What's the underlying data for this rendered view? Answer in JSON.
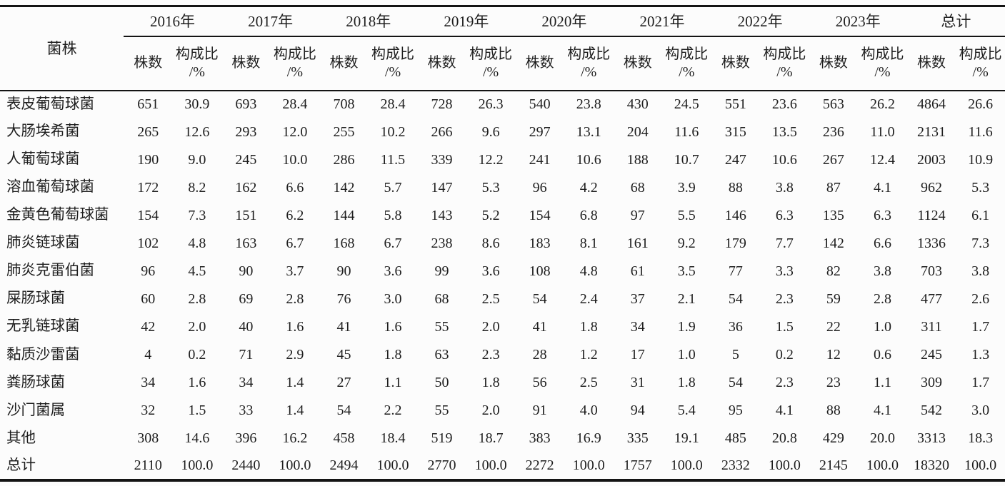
{
  "table": {
    "strain_header": "菌株",
    "sub_count_label": "株数",
    "sub_ratio_line1": "构成比",
    "sub_ratio_line2": "/%",
    "year_groups": [
      "2016年",
      "2017年",
      "2018年",
      "2019年",
      "2020年",
      "2021年",
      "2022年",
      "2023年",
      "总计"
    ],
    "rows": [
      {
        "strain": "表皮葡萄球菌",
        "values": [
          "651",
          "30.9",
          "693",
          "28.4",
          "708",
          "28.4",
          "728",
          "26.3",
          "540",
          "23.8",
          "430",
          "24.5",
          "551",
          "23.6",
          "563",
          "26.2",
          "4864",
          "26.6"
        ]
      },
      {
        "strain": "大肠埃希菌",
        "values": [
          "265",
          "12.6",
          "293",
          "12.0",
          "255",
          "10.2",
          "266",
          "9.6",
          "297",
          "13.1",
          "204",
          "11.6",
          "315",
          "13.5",
          "236",
          "11.0",
          "2131",
          "11.6"
        ]
      },
      {
        "strain": "人葡萄球菌",
        "values": [
          "190",
          "9.0",
          "245",
          "10.0",
          "286",
          "11.5",
          "339",
          "12.2",
          "241",
          "10.6",
          "188",
          "10.7",
          "247",
          "10.6",
          "267",
          "12.4",
          "2003",
          "10.9"
        ]
      },
      {
        "strain": "溶血葡萄球菌",
        "values": [
          "172",
          "8.2",
          "162",
          "6.6",
          "142",
          "5.7",
          "147",
          "5.3",
          "96",
          "4.2",
          "68",
          "3.9",
          "88",
          "3.8",
          "87",
          "4.1",
          "962",
          "5.3"
        ]
      },
      {
        "strain": "金黄色葡萄球菌",
        "values": [
          "154",
          "7.3",
          "151",
          "6.2",
          "144",
          "5.8",
          "143",
          "5.2",
          "154",
          "6.8",
          "97",
          "5.5",
          "146",
          "6.3",
          "135",
          "6.3",
          "1124",
          "6.1"
        ]
      },
      {
        "strain": "肺炎链球菌",
        "values": [
          "102",
          "4.8",
          "163",
          "6.7",
          "168",
          "6.7",
          "238",
          "8.6",
          "183",
          "8.1",
          "161",
          "9.2",
          "179",
          "7.7",
          "142",
          "6.6",
          "1336",
          "7.3"
        ]
      },
      {
        "strain": "肺炎克雷伯菌",
        "values": [
          "96",
          "4.5",
          "90",
          "3.7",
          "90",
          "3.6",
          "99",
          "3.6",
          "108",
          "4.8",
          "61",
          "3.5",
          "77",
          "3.3",
          "82",
          "3.8",
          "703",
          "3.8"
        ]
      },
      {
        "strain": "屎肠球菌",
        "values": [
          "60",
          "2.8",
          "69",
          "2.8",
          "76",
          "3.0",
          "68",
          "2.5",
          "54",
          "2.4",
          "37",
          "2.1",
          "54",
          "2.3",
          "59",
          "2.8",
          "477",
          "2.6"
        ]
      },
      {
        "strain": "无乳链球菌",
        "values": [
          "42",
          "2.0",
          "40",
          "1.6",
          "41",
          "1.6",
          "55",
          "2.0",
          "41",
          "1.8",
          "34",
          "1.9",
          "36",
          "1.5",
          "22",
          "1.0",
          "311",
          "1.7"
        ]
      },
      {
        "strain": "黏质沙雷菌",
        "values": [
          "4",
          "0.2",
          "71",
          "2.9",
          "45",
          "1.8",
          "63",
          "2.3",
          "28",
          "1.2",
          "17",
          "1.0",
          "5",
          "0.2",
          "12",
          "0.6",
          "245",
          "1.3"
        ]
      },
      {
        "strain": "粪肠球菌",
        "values": [
          "34",
          "1.6",
          "34",
          "1.4",
          "27",
          "1.1",
          "50",
          "1.8",
          "56",
          "2.5",
          "31",
          "1.8",
          "54",
          "2.3",
          "23",
          "1.1",
          "309",
          "1.7"
        ]
      },
      {
        "strain": "沙门菌属",
        "values": [
          "32",
          "1.5",
          "33",
          "1.4",
          "54",
          "2.2",
          "55",
          "2.0",
          "91",
          "4.0",
          "94",
          "5.4",
          "95",
          "4.1",
          "88",
          "4.1",
          "542",
          "3.0"
        ]
      },
      {
        "strain": "其他",
        "values": [
          "308",
          "14.6",
          "396",
          "16.2",
          "458",
          "18.4",
          "519",
          "18.7",
          "383",
          "16.9",
          "335",
          "19.1",
          "485",
          "20.8",
          "429",
          "20.0",
          "3313",
          "18.3"
        ]
      },
      {
        "strain": "总计",
        "values": [
          "2110",
          "100.0",
          "2440",
          "100.0",
          "2494",
          "100.0",
          "2770",
          "100.0",
          "2272",
          "100.0",
          "1757",
          "100.0",
          "2332",
          "100.0",
          "2145",
          "100.0",
          "18320",
          "100.0"
        ]
      }
    ]
  },
  "colors": {
    "text": "#1e1e1e",
    "rule": "#141414",
    "background": "#fcfcfc"
  }
}
